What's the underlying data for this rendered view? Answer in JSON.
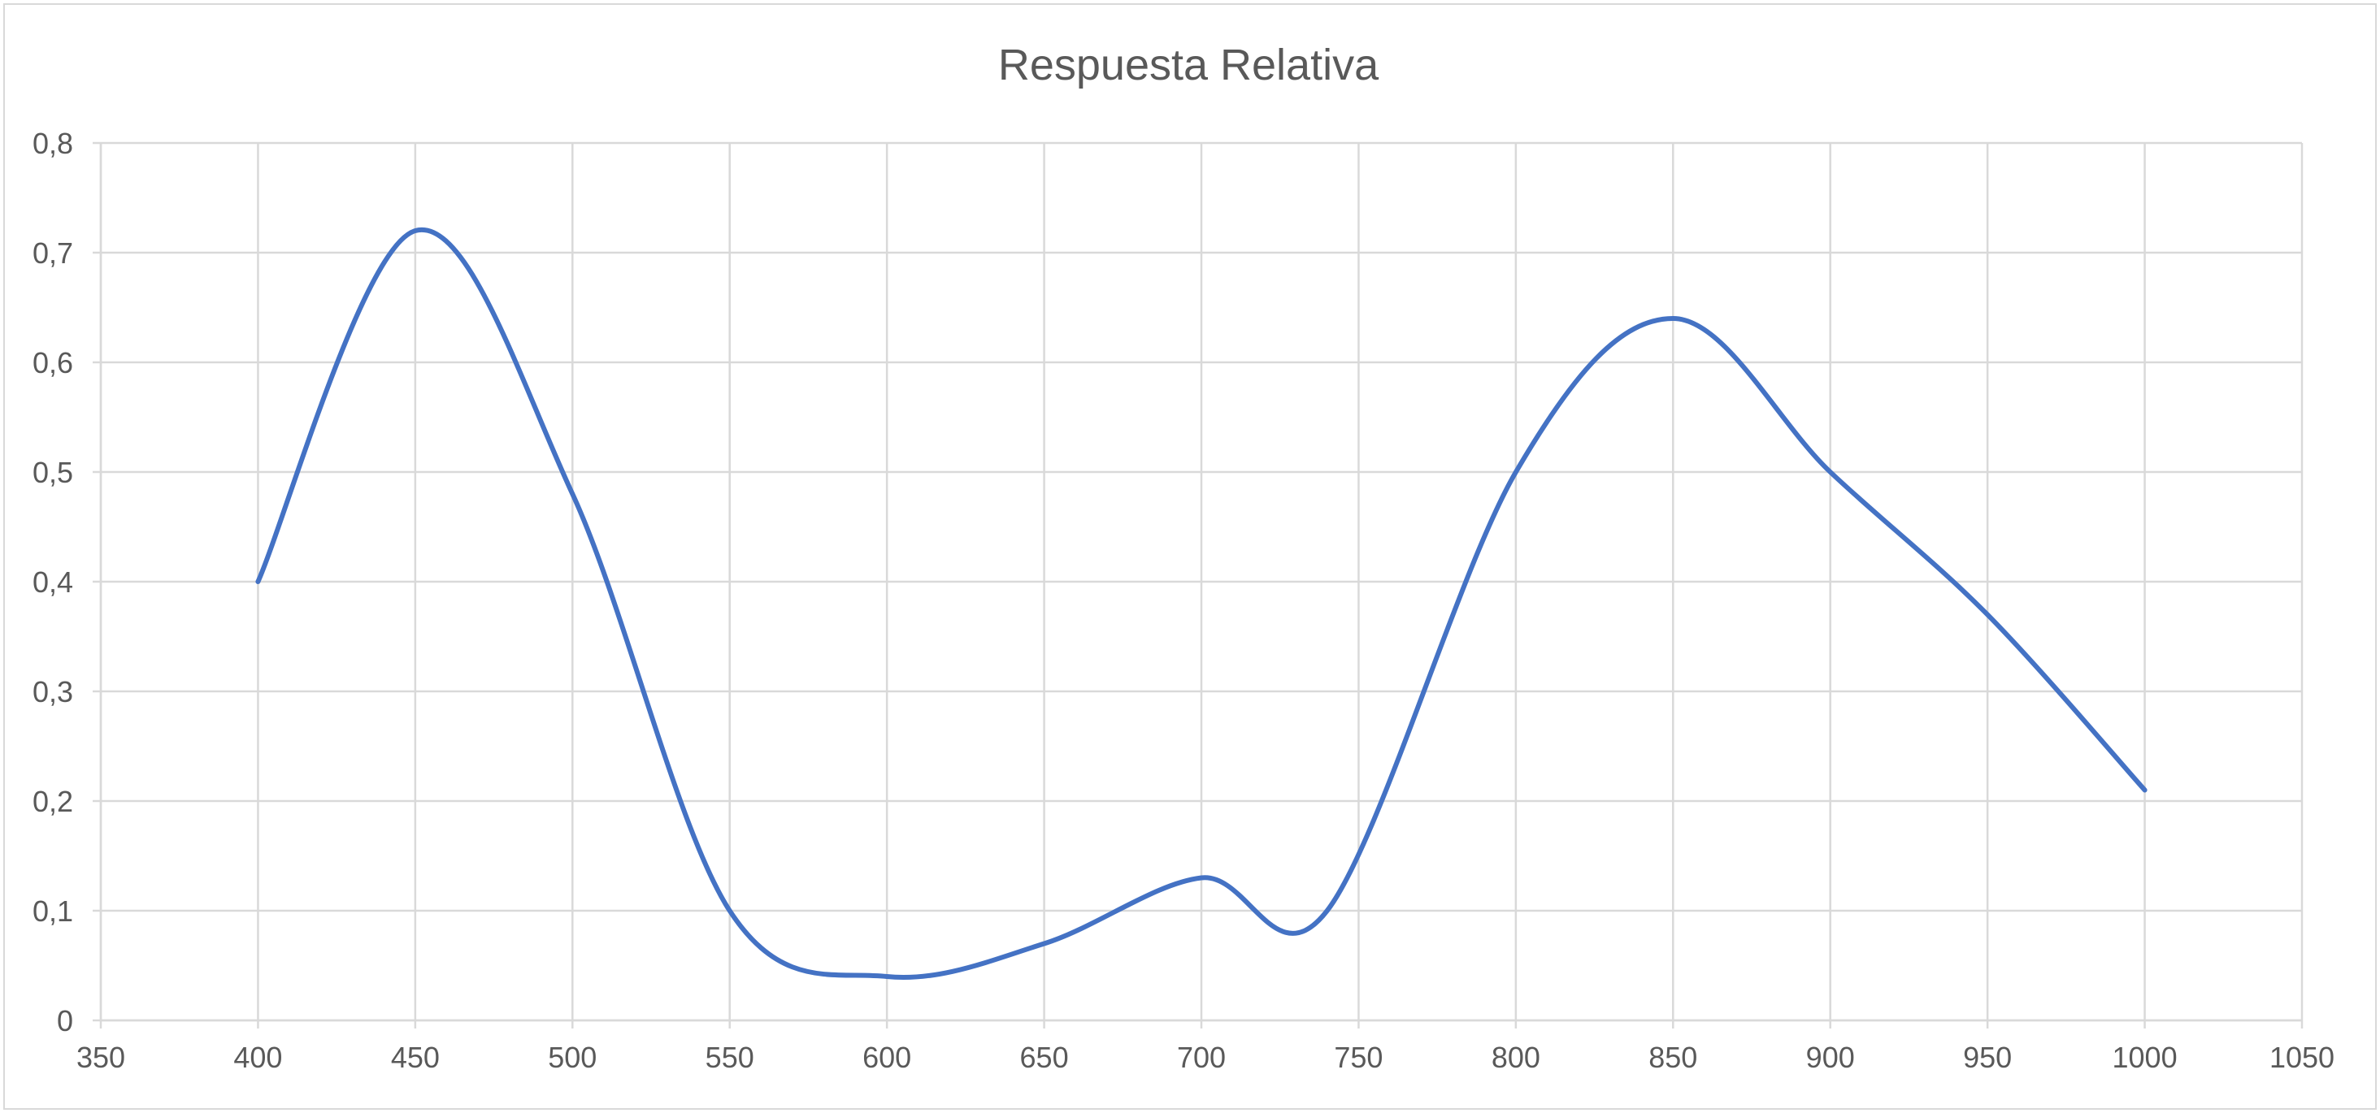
{
  "chart_data": {
    "type": "line",
    "title": "Respuesta Relativa",
    "xlabel": "",
    "ylabel": "",
    "xlim": [
      350,
      1050
    ],
    "ylim": [
      0,
      0.8
    ],
    "x_ticks": [
      "350",
      "400",
      "450",
      "500",
      "550",
      "600",
      "650",
      "700",
      "750",
      "800",
      "850",
      "900",
      "950",
      "1000",
      "1050"
    ],
    "y_ticks": [
      "0",
      "0,1",
      "0,2",
      "0,3",
      "0,4",
      "0,5",
      "0,6",
      "0,7",
      "0,8"
    ],
    "grid": true,
    "legend": "none",
    "smooth": true,
    "series": [
      {
        "color": "#4472c4",
        "points": [
          [
            400,
            0.4
          ],
          [
            450,
            0.72
          ],
          [
            500,
            0.48
          ],
          [
            550,
            0.1
          ],
          [
            600,
            0.04
          ],
          [
            650,
            0.07
          ],
          [
            700,
            0.13
          ],
          [
            740,
            0.1
          ],
          [
            800,
            0.5
          ],
          [
            850,
            0.64
          ],
          [
            900,
            0.5
          ],
          [
            950,
            0.37
          ],
          [
            1000,
            0.21
          ]
        ]
      }
    ]
  }
}
